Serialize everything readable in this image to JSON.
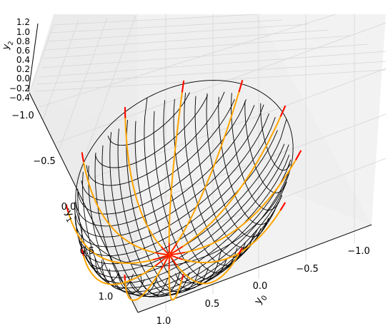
{
  "chart_data": {
    "type": "3d-surface-with-trajectories",
    "title": "",
    "axes": {
      "x": {
        "label_base": "y",
        "label_sub": "0",
        "ticks": [
          "1.0",
          "0.5",
          "0.0",
          "−0.5",
          "−1.0"
        ],
        "values": [
          1.0,
          0.5,
          0.0,
          -0.5,
          -1.0
        ]
      },
      "y": {
        "label_base": "y",
        "label_sub": "1",
        "ticks": [
          "−1.0",
          "−0.5",
          "0.0",
          "0.5",
          "1.0"
        ],
        "values": [
          -1.0,
          -0.5,
          0.0,
          0.5,
          1.0
        ]
      },
      "z": {
        "label_base": "y",
        "label_sub": "2",
        "ticks": [
          "1.2",
          "1.0",
          "0.8",
          "0.6",
          "0.4",
          "0.2",
          "0.0",
          "−0.2",
          "−0.4"
        ],
        "values": [
          1.2,
          1.0,
          0.8,
          0.6,
          0.4,
          0.2,
          0.0,
          -0.2,
          -0.4
        ]
      }
    },
    "surface": {
      "shape": "upper unit hemisphere",
      "color": "#000000"
    },
    "trajectories": {
      "count": 12,
      "color": "#ffa500",
      "end_segment_color": "#ff0000",
      "converge_point": [
        0.0,
        0.0,
        1.0
      ]
    },
    "grid": true,
    "pane_color": "#f2f2f2"
  }
}
